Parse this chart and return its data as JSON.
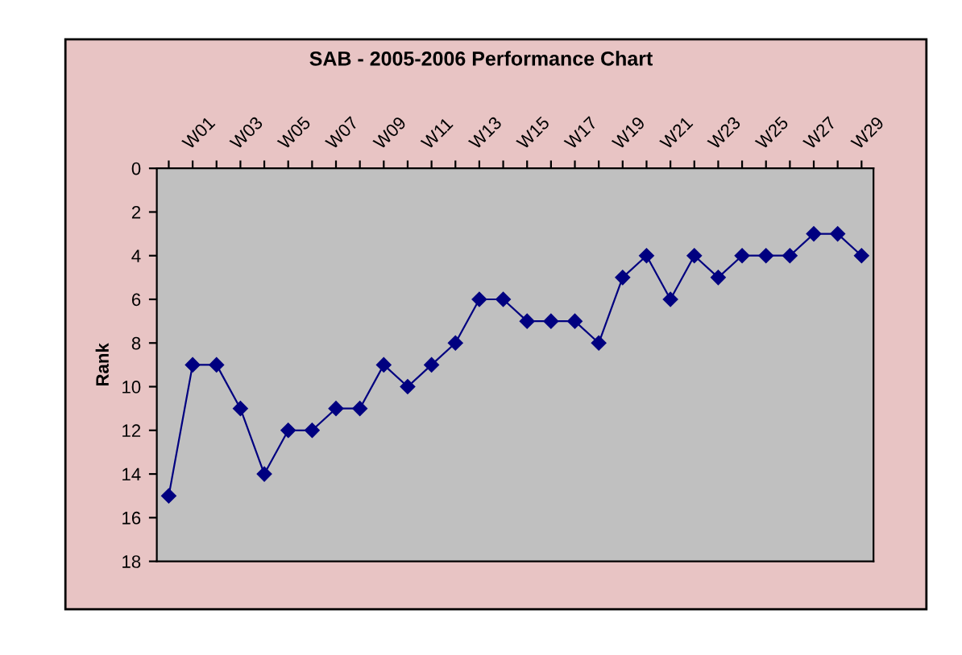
{
  "chart_data": {
    "type": "line",
    "title": "SAB - 2005-2006 Performance Chart",
    "ylabel": "Rank",
    "categories": [
      null,
      "W01",
      null,
      "W03",
      null,
      "W05",
      null,
      "W07",
      null,
      "W09",
      null,
      "W11",
      null,
      "W13",
      null,
      "W15",
      null,
      "W17",
      null,
      "W19",
      null,
      "W21",
      null,
      "W23",
      null,
      "W25",
      null,
      "W27",
      null,
      "W29"
    ],
    "series": [
      {
        "color": "#000080",
        "values": [
          15,
          9,
          9,
          11,
          14,
          12,
          12,
          11,
          11,
          9,
          10,
          9,
          8,
          6,
          6,
          7,
          7,
          7,
          8,
          5,
          4,
          6,
          4,
          5,
          4,
          4,
          4,
          3,
          3,
          4
        ]
      }
    ],
    "ylim": [
      18,
      0
    ],
    "yticks": [
      0,
      2,
      4,
      6,
      8,
      10,
      12,
      14,
      16,
      18
    ],
    "marker": "diamond",
    "line_style": "solid",
    "grid": false,
    "legend": false
  }
}
